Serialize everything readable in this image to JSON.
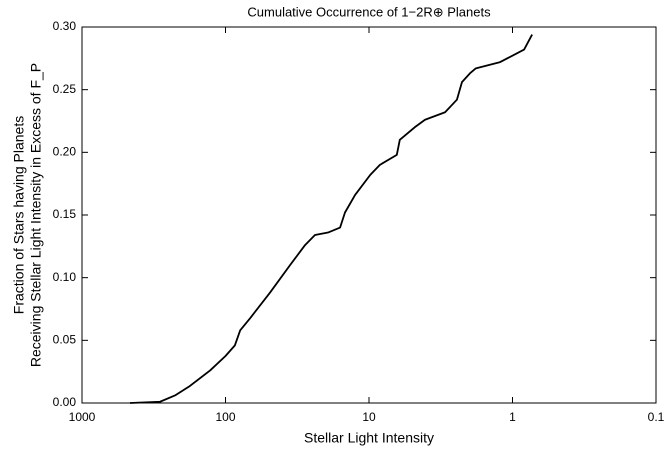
{
  "chart_data": {
    "type": "line",
    "title": "Cumulative Occurrence of 1−2R⊕ Planets",
    "xlabel": "Stellar Light Intensity",
    "ylabel": [
      "Fraction of Stars having Planets",
      "Receiving Stellar Light Intensity in Excess of F_P"
    ],
    "xscale": "log",
    "xlim": [
      1000,
      0.1
    ],
    "xticks": [
      1000,
      100,
      10,
      1,
      0.1
    ],
    "ylim": [
      0,
      0.3
    ],
    "yticks": [
      {
        "value": 0,
        "label": "0.00"
      },
      0.05,
      {
        "value": 0.1,
        "label": "0.10"
      },
      0.15,
      {
        "value": 0.2,
        "label": "0.20"
      },
      0.25,
      {
        "value": 0.3,
        "label": "0.30"
      }
    ],
    "color": "#000000",
    "x": [
      463,
      286,
      225,
      177,
      128,
      100,
      86,
      79,
      67,
      49,
      35.5,
      27.9,
      23.8,
      19.3,
      15.9,
      14.7,
      12.5,
      9.8,
      8.4,
      6.4,
      6.1,
      4.8,
      4.07,
      2.95,
      2.44,
      2.25,
      1.98,
      1.8,
      1.22,
      0.83,
      0.73
    ],
    "values": [
      0,
      0.001,
      0.006,
      0.0136,
      0.026,
      0.0375,
      0.046,
      0.058,
      0.068,
      0.088,
      0.11,
      0.126,
      0.134,
      0.136,
      0.14,
      0.152,
      0.166,
      0.182,
      0.19,
      0.198,
      0.21,
      0.22,
      0.226,
      0.232,
      0.242,
      0.256,
      0.263,
      0.267,
      0.272,
      0.282,
      0.294
    ]
  }
}
